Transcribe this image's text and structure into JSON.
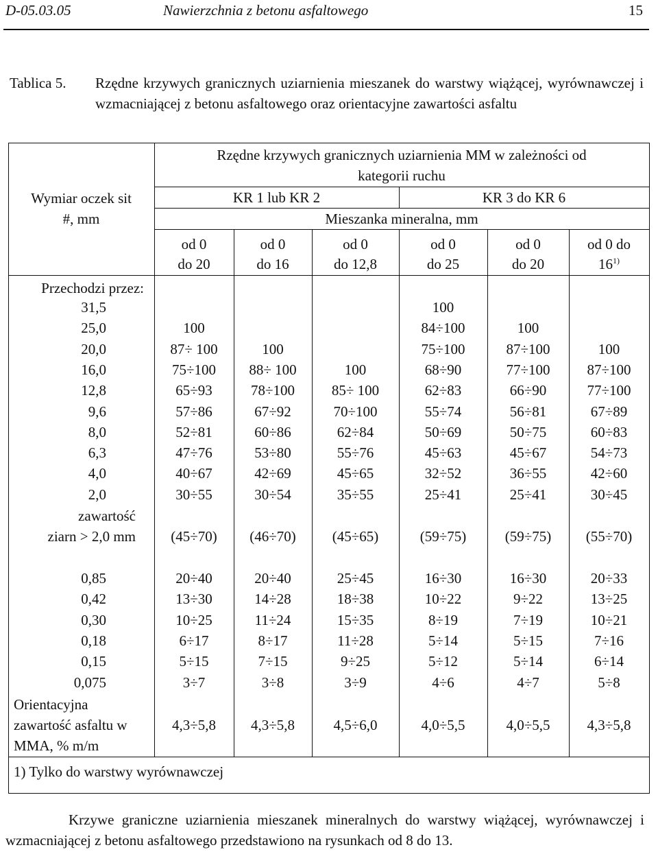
{
  "header": {
    "doc_code": "D-05.03.05",
    "doc_title": "Nawierzchnia z betonu asfaltowego",
    "page_number": "15"
  },
  "caption": {
    "label": "Tablica 5.",
    "text": "Rzędne krzywych granicznych uziarnienia mieszanek do warstwy wiążącej, wyrównawczej i wzmacniającej z betonu asfaltowego oraz orientacyjne zawartości asfaltu"
  },
  "table": {
    "stub_header": [
      "Wymiar oczek sit",
      "#, mm"
    ],
    "main_header": [
      "Rzędne krzywych granicznych uziarnienia MM w zależności od",
      "kategorii ruchu"
    ],
    "group_kr12": "KR 1 lub KR 2",
    "group_kr36": "KR 3 do KR 6",
    "mix_header": "Mieszanka mineralna, mm",
    "columns": [
      {
        "l1": "od 0",
        "l2": "do 20"
      },
      {
        "l1": "od 0",
        "l2": "do 16"
      },
      {
        "l1": "od 0",
        "l2": "do 12,8"
      },
      {
        "l1": "od 0",
        "l2": "do 25"
      },
      {
        "l1": "od 0",
        "l2": "do 20"
      },
      {
        "l1": "od 0 do",
        "l2": "16",
        "sup": "1)"
      }
    ],
    "passes_label": "Przechodzi przez:",
    "rows_a": [
      {
        "sieve": "31,5",
        "v": [
          "",
          "",
          "",
          "100",
          "",
          ""
        ]
      },
      {
        "sieve": "25,0",
        "v": [
          "100",
          "",
          "",
          "84÷100",
          "100",
          ""
        ]
      },
      {
        "sieve": "20,0",
        "v": [
          "87÷ 100",
          "100",
          "",
          "75÷100",
          "87÷100",
          "100"
        ]
      },
      {
        "sieve": "16,0",
        "v": [
          "75÷100",
          "88÷ 100",
          "100",
          "68÷90",
          "77÷100",
          "87÷100"
        ]
      },
      {
        "sieve": "12,8",
        "v": [
          "65÷93",
          "78÷100",
          "85÷ 100",
          "62÷83",
          "66÷90",
          "77÷100"
        ]
      },
      {
        "sieve": "9,6",
        "v": [
          "57÷86",
          "67÷92",
          "70÷100",
          "55÷74",
          "56÷81",
          "67÷89"
        ]
      },
      {
        "sieve": "8,0",
        "v": [
          "52÷81",
          "60÷86",
          "62÷84",
          "50÷69",
          "50÷75",
          "60÷83"
        ]
      },
      {
        "sieve": "6,3",
        "v": [
          "47÷76",
          "53÷80",
          "55÷76",
          "45÷63",
          "45÷67",
          "54÷73"
        ]
      },
      {
        "sieve": "4,0",
        "v": [
          "40÷67",
          "42÷69",
          "45÷65",
          "32÷52",
          "36÷55",
          "42÷60"
        ]
      },
      {
        "sieve": "2,0",
        "v": [
          "30÷55",
          "30÷54",
          "35÷55",
          "25÷41",
          "25÷41",
          "30÷45"
        ]
      }
    ],
    "content_label": [
      "zawartość",
      "ziarn > 2,0 mm"
    ],
    "content_values": [
      "(45÷70)",
      "(46÷70)",
      "(45÷65)",
      "(59÷75)",
      "(59÷75)",
      "(55÷70)"
    ],
    "rows_b": [
      {
        "sieve": "0,85",
        "v": [
          "20÷40",
          "20÷40",
          "25÷45",
          "16÷30",
          "16÷30",
          "20÷33"
        ]
      },
      {
        "sieve": "0,42",
        "v": [
          "13÷30",
          "14÷28",
          "18÷38",
          "10÷22",
          "9÷22",
          "13÷25"
        ]
      },
      {
        "sieve": "0,30",
        "v": [
          "10÷25",
          "11÷24",
          "15÷35",
          "8÷19",
          "7÷19",
          "10÷21"
        ]
      },
      {
        "sieve": "0,18",
        "v": [
          "6÷17",
          "8÷17",
          "11÷28",
          "5÷14",
          "5÷15",
          "7÷16"
        ]
      },
      {
        "sieve": "0,15",
        "v": [
          "5÷15",
          "7÷15",
          "9÷25",
          "5÷12",
          "5÷14",
          "6÷14"
        ]
      },
      {
        "sieve": "0,075",
        "v": [
          "3÷7",
          "3÷8",
          "3÷9",
          "4÷6",
          "4÷7",
          "5÷8"
        ]
      }
    ],
    "asphalt_label": [
      "Orientacyjna",
      "zawartość asfaltu w",
      "MMA,  % m/m"
    ],
    "asphalt_values": [
      "4,3÷5,8",
      "4,3÷5,8",
      "4,5÷6,0",
      "4,0÷5,5",
      "4,0÷5,5",
      "4,3÷5,8"
    ],
    "footnote": "1) Tylko do warstwy wyrównawczej"
  },
  "closing_paragraph": "Krzywe graniczne uziarnienia mieszanek mineralnych do warstwy wiążącej, wyrównawczej i wzmacniającej z betonu asfaltowego przedstawiono na rysunkach od 8 do 13."
}
